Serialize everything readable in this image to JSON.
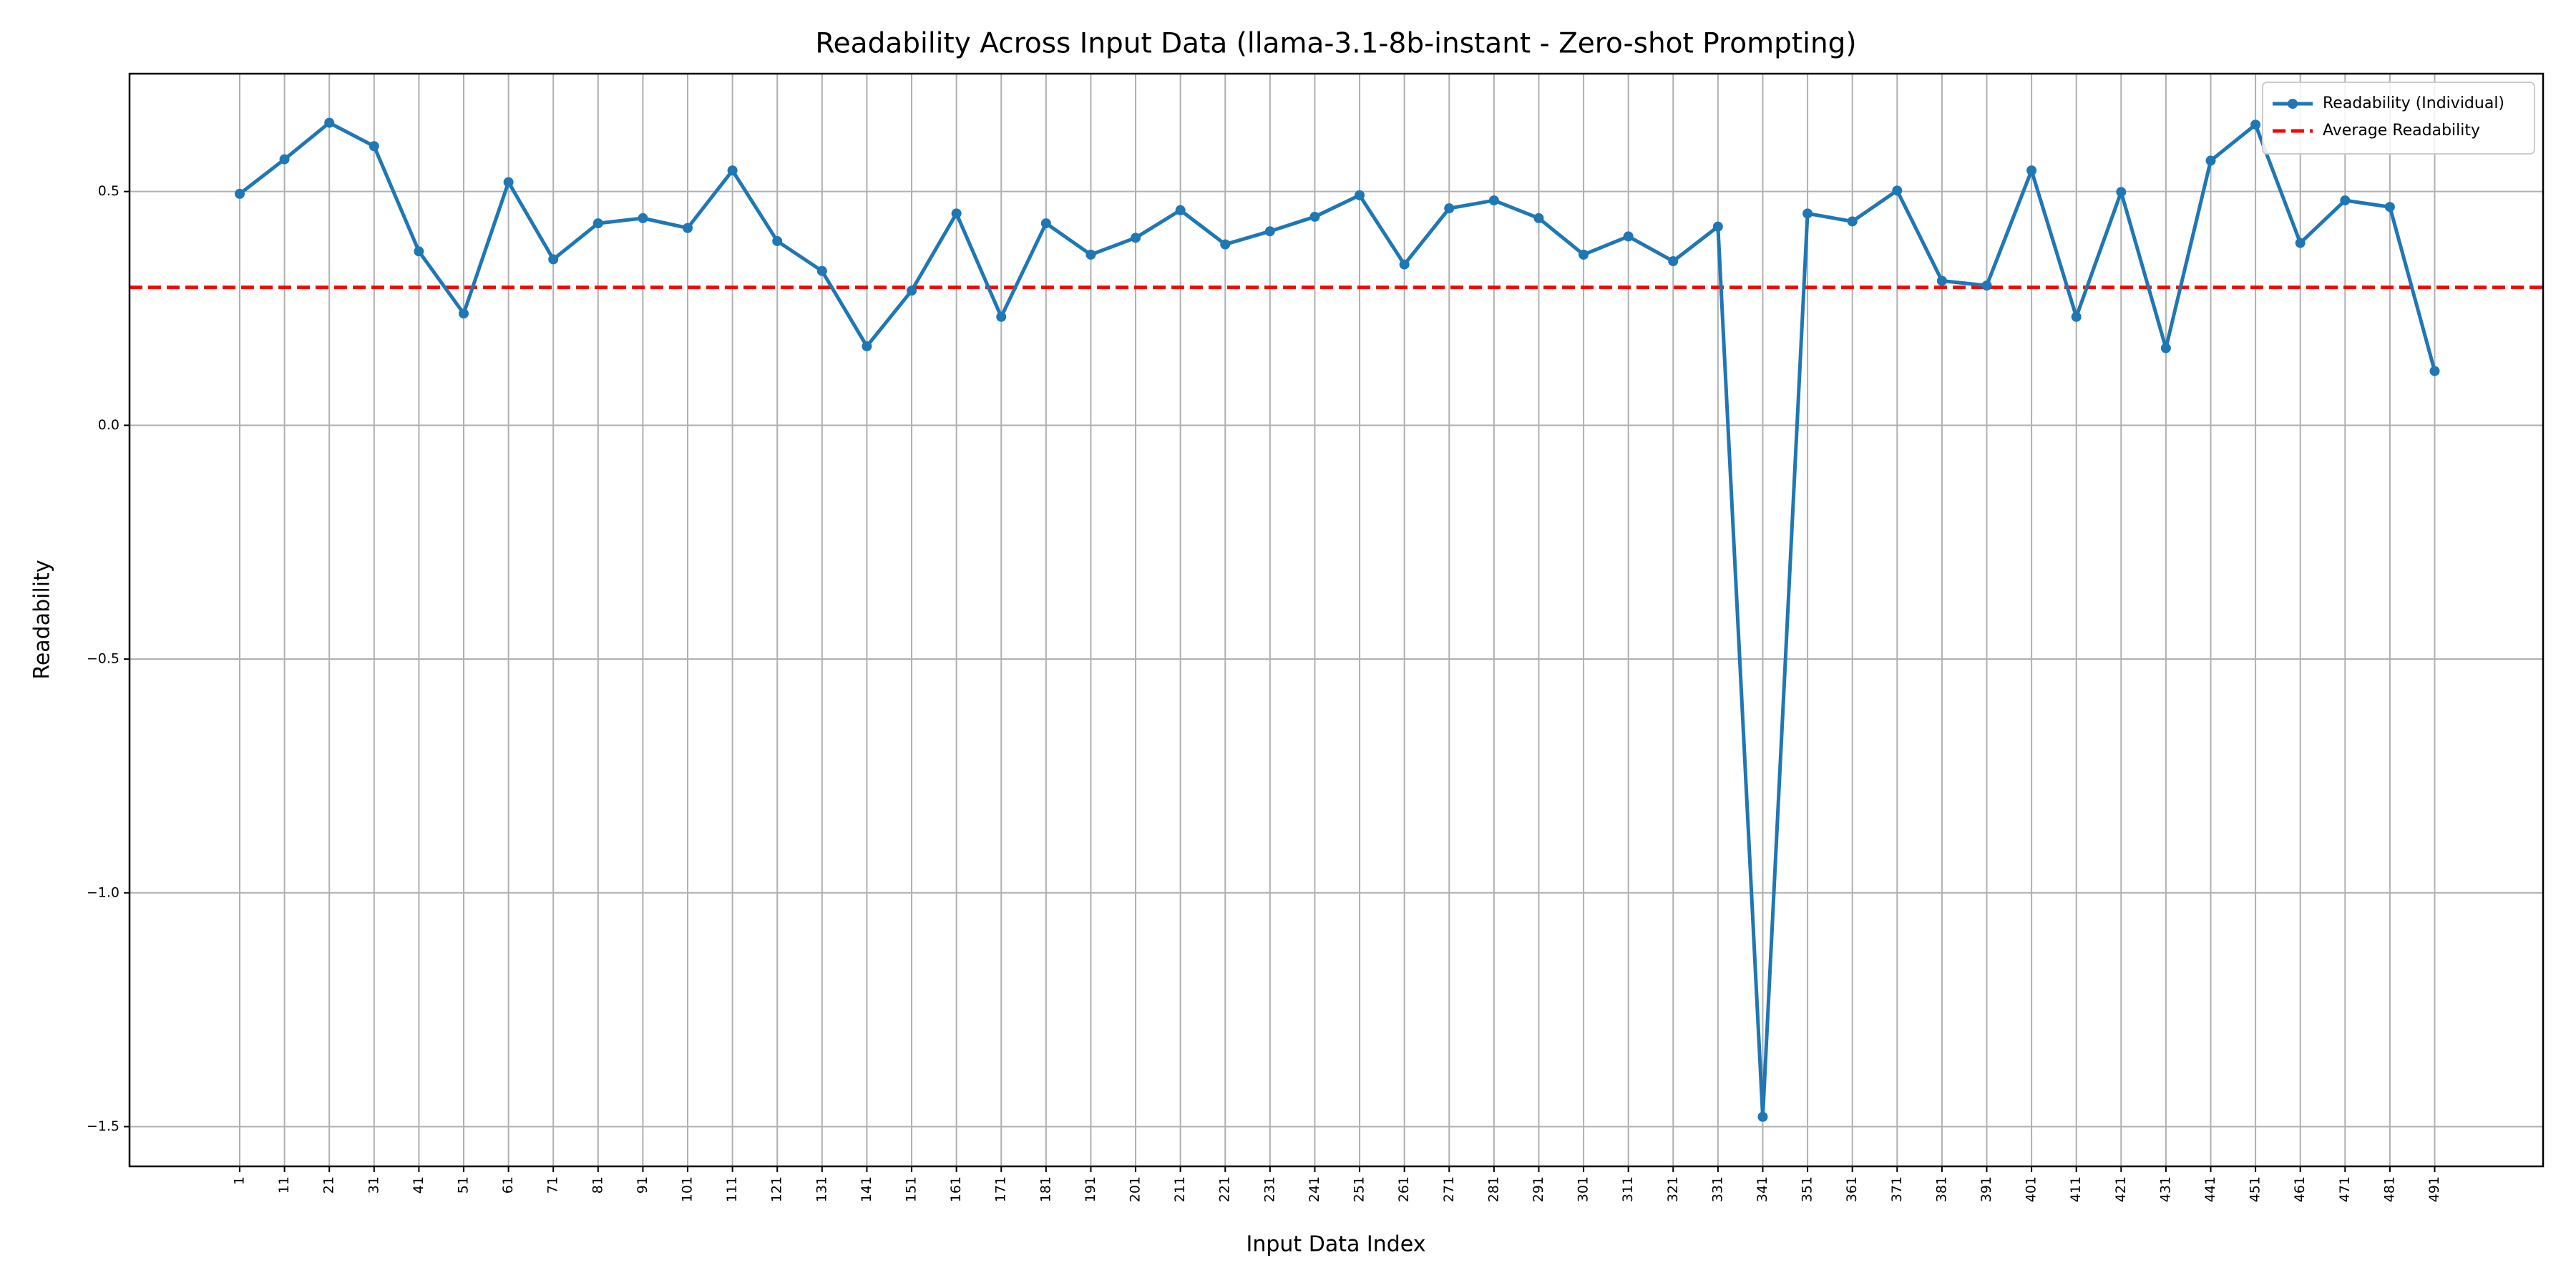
{
  "chart_data": {
    "type": "line",
    "title": "Readability Across Input Data (llama-3.1-8b-instant - Zero-shot Prompting)",
    "xlabel": "Input Data Index",
    "ylabel": "Readability",
    "x": [
      1,
      11,
      21,
      31,
      41,
      51,
      61,
      71,
      81,
      91,
      101,
      111,
      121,
      131,
      141,
      151,
      161,
      171,
      181,
      191,
      201,
      211,
      221,
      231,
      241,
      251,
      261,
      271,
      281,
      291,
      301,
      311,
      321,
      331,
      341,
      351,
      361,
      371,
      381,
      391,
      401,
      411,
      421,
      431,
      441,
      451,
      461,
      471,
      481,
      491
    ],
    "series": [
      {
        "name": "Readability (Individual)",
        "color": "#1f77b4",
        "values": [
          0.495,
          0.569,
          0.647,
          0.597,
          0.372,
          0.239,
          0.52,
          0.355,
          0.432,
          0.443,
          0.422,
          0.545,
          0.394,
          0.33,
          0.169,
          0.288,
          0.453,
          0.232,
          0.432,
          0.365,
          0.401,
          0.46,
          0.387,
          0.415,
          0.446,
          0.492,
          0.344,
          0.464,
          0.481,
          0.443,
          0.365,
          0.404,
          0.351,
          0.425,
          -1.479,
          0.453,
          0.436,
          0.502,
          0.309,
          0.299,
          0.545,
          0.232,
          0.499,
          0.165,
          0.566,
          0.643,
          0.39,
          0.481,
          0.467,
          0.116
        ]
      }
    ],
    "hlines": [
      {
        "name": "Average Readability",
        "value": 0.295,
        "color": "#ff0000",
        "style": "dashed"
      }
    ],
    "xlim": [
      -23.6,
      515.2
    ],
    "ylim": [
      -1.585,
      0.752
    ],
    "xticks": [
      1,
      11,
      21,
      31,
      41,
      51,
      61,
      71,
      81,
      91,
      101,
      111,
      121,
      131,
      141,
      151,
      161,
      171,
      181,
      191,
      201,
      211,
      221,
      231,
      241,
      251,
      261,
      271,
      281,
      291,
      301,
      311,
      321,
      331,
      341,
      351,
      361,
      371,
      381,
      391,
      401,
      411,
      421,
      431,
      441,
      451,
      461,
      471,
      481,
      491
    ],
    "yticks": [
      {
        "value": -1.5,
        "label": "−1.5"
      },
      {
        "value": -1.0,
        "label": "−1.0"
      },
      {
        "value": -0.5,
        "label": "−0.5"
      },
      {
        "value": 0.0,
        "label": "0.0"
      },
      0.5
    ],
    "grid": true,
    "legend": "upper right"
  }
}
